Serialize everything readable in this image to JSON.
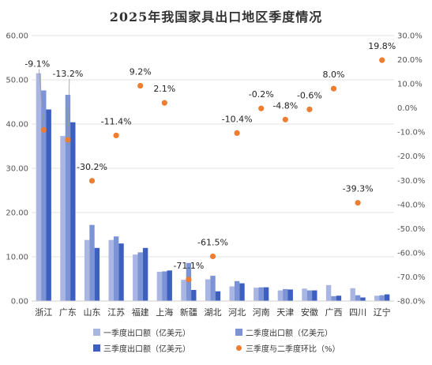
{
  "title": "2025年我国家具出口地区季度情况",
  "colors": {
    "q1": "#a9b5e3",
    "q2": "#7c93d6",
    "q3": "#3d5fbf",
    "growth": "#ed7d31",
    "grid": "#e3e3e3"
  },
  "legend": {
    "q1": "一季度出口额（亿美元）",
    "q2": "二季度出口额（亿美元）",
    "q3": "三季度出口额（亿美元）",
    "growth": "三季度与二季度环比（%）"
  },
  "chart_data": {
    "type": "bar",
    "title": "2025年我国家具出口地区季度情况",
    "categories": [
      "浙江",
      "广东",
      "山东",
      "江苏",
      "福建",
      "上海",
      "新疆",
      "湖北",
      "河北",
      "河南",
      "天津",
      "安徽",
      "广西",
      "四川",
      "辽宁"
    ],
    "series": [
      {
        "name": "一季度出口额（亿美元）",
        "type": "bar",
        "axis": "left",
        "values": [
          51.5,
          37.3,
          13.8,
          13.8,
          10.5,
          6.6,
          4.8,
          4.9,
          3.3,
          3.0,
          2.4,
          2.8,
          3.6,
          2.9,
          1.2
        ]
      },
      {
        "name": "二季度出口额（亿美元）",
        "type": "bar",
        "axis": "left",
        "values": [
          47.6,
          46.6,
          17.2,
          14.6,
          11.0,
          6.7,
          8.6,
          5.7,
          4.5,
          3.1,
          2.7,
          2.4,
          1.1,
          1.3,
          1.3
        ]
      },
      {
        "name": "三季度出口额（亿美元）",
        "type": "bar",
        "axis": "left",
        "values": [
          43.3,
          40.4,
          12.0,
          13.0,
          12.0,
          6.9,
          2.5,
          2.2,
          4.0,
          3.1,
          2.6,
          2.4,
          1.2,
          0.8,
          1.5
        ]
      },
      {
        "name": "三季度与二季度环比（%）",
        "type": "scatter",
        "axis": "right",
        "values": [
          -9.1,
          -13.2,
          -30.2,
          -11.4,
          9.2,
          2.1,
          -71.1,
          -61.5,
          -10.4,
          -0.2,
          -4.8,
          -0.6,
          8.0,
          -39.3,
          19.8
        ],
        "labels": [
          "-9.1%",
          "-13.2%",
          "-30.2%",
          "-11.4%",
          "9.2%",
          "2.1%",
          "-71.1%",
          "-61.5%",
          "-10.4%",
          "-0.2%",
          "-4.8%",
          "-0.6%",
          "8.0%",
          "-39.3%",
          "19.8%"
        ]
      }
    ],
    "y_left": {
      "min": 0,
      "max": 60,
      "step": 10,
      "tick_labels": [
        "0.00",
        "10.00",
        "20.00",
        "30.00",
        "40.00",
        "50.00",
        "60.00"
      ]
    },
    "y_right": {
      "min": -80,
      "max": 30,
      "step": 10,
      "tick_labels": [
        "-80.0%",
        "-70.0%",
        "-60.0%",
        "-50.0%",
        "-40.0%",
        "-30.0%",
        "-20.0%",
        "-10.0%",
        "0.0%",
        "10.0%",
        "20.0%",
        "30.0%"
      ]
    },
    "grid": true,
    "legend_position": "bottom"
  }
}
